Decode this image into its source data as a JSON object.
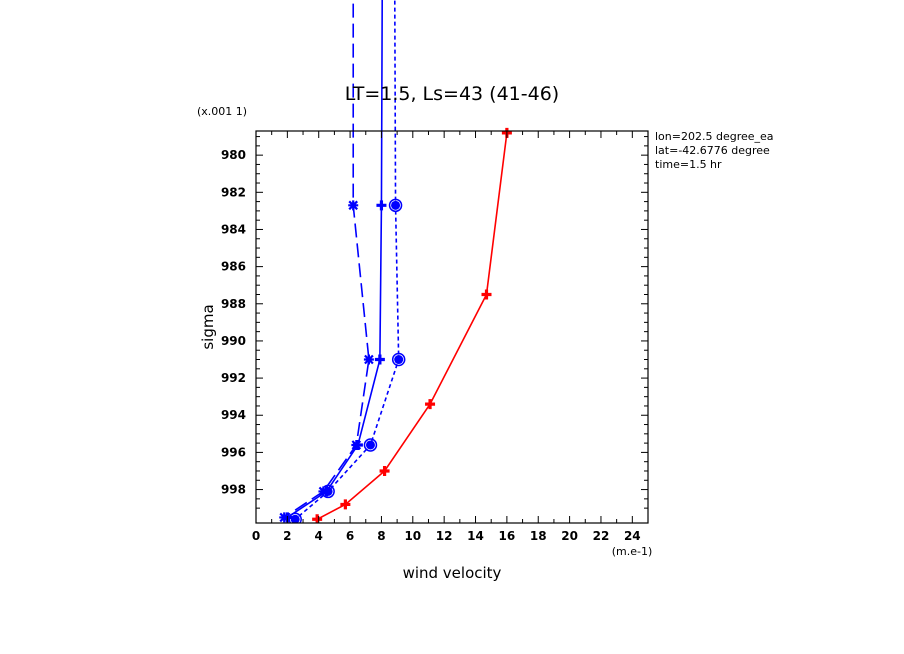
{
  "chart_data": {
    "type": "line",
    "title": "LT=1.5, Ls=43 (41-46)",
    "xlabel": "wind velocity",
    "ylabel": "sigma",
    "x_unit": "(m.e-1)",
    "y_unit": "(x.001 1)",
    "xlim": [
      0,
      25
    ],
    "ylim": [
      999.8,
      978.7
    ],
    "x_ticks": [
      0,
      2,
      4,
      6,
      8,
      10,
      12,
      14,
      16,
      18,
      20,
      22,
      24
    ],
    "y_ticks": [
      980,
      982,
      984,
      986,
      988,
      990,
      992,
      994,
      996,
      998
    ],
    "annotations": [
      "lon=202.5 degree_ea",
      "lat=-42.6776 degree",
      "time=1.5 hr"
    ],
    "series": [
      {
        "color": "#ff0000",
        "style": "solid",
        "marker": "plus",
        "points": [
          [
            16.0,
            978.8
          ],
          [
            14.7,
            987.5
          ],
          [
            11.1,
            993.4
          ],
          [
            8.2,
            997.0
          ],
          [
            5.7,
            998.8
          ],
          [
            3.9,
            999.6
          ]
        ]
      },
      {
        "color": "#0000ff",
        "style": "solid",
        "marker": "plus",
        "points": [
          [
            8.1,
            960.0
          ],
          [
            8.0,
            982.7
          ],
          [
            7.9,
            991.0
          ],
          [
            6.5,
            995.6
          ],
          [
            4.5,
            998.1
          ],
          [
            2.0,
            999.5
          ]
        ]
      },
      {
        "color": "#0000ff",
        "style": "dashed",
        "marker": "star",
        "points": [
          [
            6.2,
            960.0
          ],
          [
            6.2,
            982.7
          ],
          [
            7.2,
            991.0
          ],
          [
            6.4,
            995.6
          ],
          [
            4.3,
            998.1
          ],
          [
            1.8,
            999.5
          ]
        ]
      },
      {
        "color": "#0000ff",
        "style": "dotted",
        "marker": "circle",
        "points": [
          [
            8.8,
            960.0
          ],
          [
            8.9,
            982.7
          ],
          [
            9.1,
            991.0
          ],
          [
            7.3,
            995.6
          ],
          [
            4.6,
            998.1
          ],
          [
            2.5,
            999.6
          ]
        ]
      }
    ]
  }
}
